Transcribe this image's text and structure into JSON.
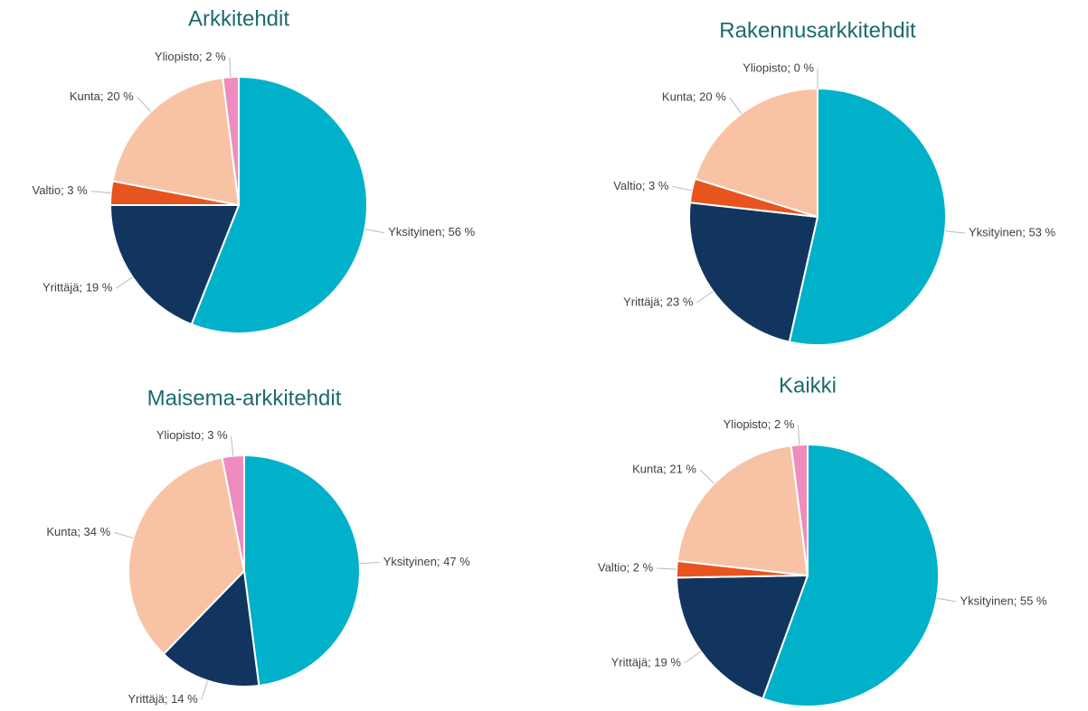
{
  "chart_data": [
    {
      "type": "pie",
      "title": "Arkkitehdit",
      "values": [
        56,
        19,
        3,
        20,
        2
      ],
      "value_labels": [
        "Yksityinen; 56 %",
        "Yrittäjä; 19 %",
        "Valtio; 3 %",
        "Kunta; 20 %",
        "Yliopisto; 2 %"
      ],
      "colors": [
        "#00b1c9",
        "#12355f",
        "#e8541e",
        "#f8c3a4",
        "#ee8cbf"
      ]
    },
    {
      "type": "pie",
      "title": "Rakennusarkkitehdit",
      "values": [
        53,
        23,
        3,
        20,
        0
      ],
      "value_labels": [
        "Yksityinen; 53 %",
        "Yrittäjä; 23 %",
        "Valtio; 3 %",
        "Kunta; 20 %",
        "Yliopisto; 0 %"
      ],
      "colors": [
        "#00b1c9",
        "#12355f",
        "#e8541e",
        "#f8c3a4",
        "#ee8cbf"
      ]
    },
    {
      "type": "pie",
      "title": "Maisema-arkkitehdit",
      "values": [
        47,
        14,
        34,
        3
      ],
      "value_labels": [
        "Yksityinen; 47 %",
        "Yrittäjä; 14 %",
        "Kunta; 34 %",
        "Yliopisto; 3 %"
      ],
      "colors": [
        "#00b1c9",
        "#12355f",
        "#f8c3a4",
        "#ee8cbf"
      ]
    },
    {
      "type": "pie",
      "title": "Kaikki",
      "values": [
        55,
        19,
        2,
        21,
        2
      ],
      "value_labels": [
        "Yksityinen; 55 %",
        "Yrittäjä; 19 %",
        "Valtio; 2 %",
        "Kunta; 21 %",
        "Yliopisto; 2 %"
      ],
      "colors": [
        "#00b1c9",
        "#12355f",
        "#e8541e",
        "#f8c3a4",
        "#ee8cbf"
      ]
    }
  ]
}
